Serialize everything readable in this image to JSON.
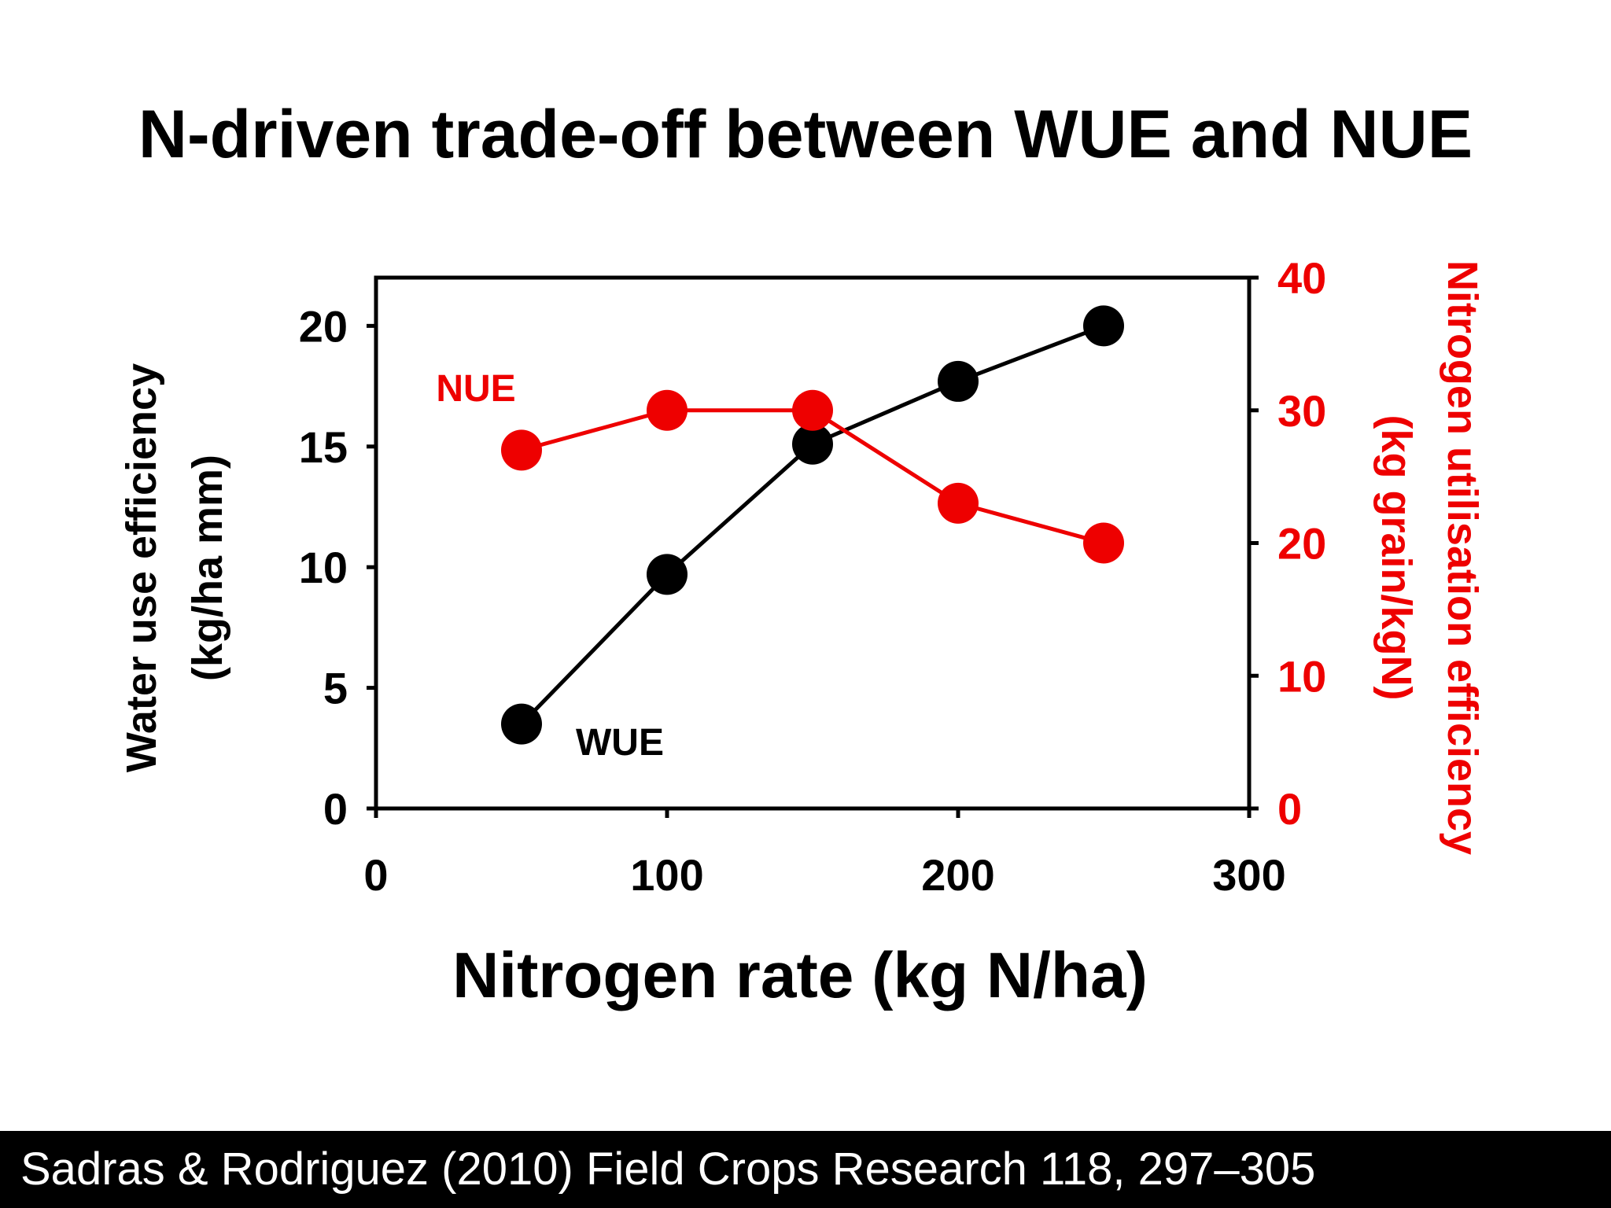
{
  "slide": {
    "title": "N-driven trade-off between WUE and NUE",
    "citation": "Sadras & Rodriguez (2010) Field Crops Research 118, 297–305"
  },
  "colors": {
    "wue": "#000000",
    "nue": "#ee0000",
    "axis": "#000000"
  },
  "chart_data": {
    "type": "line",
    "title": "N-driven trade-off between WUE and NUE",
    "x_axis": {
      "label": "Nitrogen rate (kg N/ha)",
      "range": [
        0,
        300
      ],
      "ticks": [
        0,
        100,
        200,
        300
      ]
    },
    "y_axis_left": {
      "label_line1": "Water use efficiency",
      "label_line2": "(kg/ha mm)",
      "range": [
        0,
        22
      ],
      "ticks": [
        0,
        5,
        10,
        15,
        20
      ]
    },
    "y_axis_right": {
      "label_line1": "Nitrogen utilisation efficiency",
      "label_line2": "(kg grain/kgN)",
      "range": [
        0,
        40
      ],
      "ticks": [
        0,
        10,
        20,
        30,
        40
      ]
    },
    "series": [
      {
        "name": "WUE",
        "axis": "left",
        "color": "#000000",
        "x": [
          50,
          100,
          150,
          200,
          250
        ],
        "y": [
          3.5,
          9.7,
          15.1,
          17.7,
          20.0
        ]
      },
      {
        "name": "NUE",
        "axis": "right",
        "color": "#ee0000",
        "x": [
          50,
          100,
          150,
          200,
          250
        ],
        "y": [
          27.0,
          30.0,
          30.0,
          23.0,
          20.0
        ]
      }
    ],
    "annotations": [
      {
        "text": "NUE",
        "series": "NUE"
      },
      {
        "text": "WUE",
        "series": "WUE"
      }
    ],
    "grid": false,
    "legend": "none"
  }
}
